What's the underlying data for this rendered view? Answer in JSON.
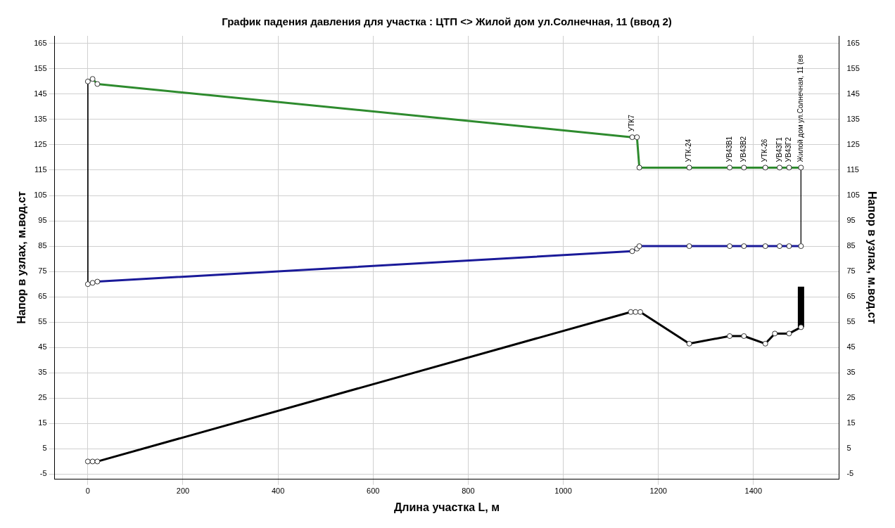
{
  "chart_data": {
    "type": "line",
    "title": "График падения давления для участка : ЦТП <> Жилой дом ул.Солнечная, 11 (ввод 2)",
    "xlabel": "Длина участка L, м",
    "ylabel": "Напор в узлах, м.вод.ст",
    "y2label": "Напор в узлах, м.вод.ст",
    "xlim": [
      -70,
      1580
    ],
    "xticks": [
      0,
      200,
      400,
      600,
      800,
      1000,
      1200,
      1400
    ],
    "ylim": [
      -7,
      168
    ],
    "yticks": [
      -5,
      5,
      15,
      25,
      35,
      45,
      55,
      65,
      75,
      85,
      95,
      105,
      115,
      125,
      135,
      145,
      155,
      165
    ],
    "y2lim": [
      -7,
      168
    ],
    "y2ticks": [
      -5,
      5,
      15,
      25,
      35,
      45,
      55,
      65,
      75,
      85,
      95,
      105,
      115,
      125,
      135,
      145,
      155,
      165
    ],
    "grid": true,
    "legend": false,
    "marker": "circle",
    "line_style": "solid",
    "series": [
      {
        "color": "#2e8b2e",
        "x": [
          0,
          10,
          20,
          1145,
          1155,
          1160,
          1265,
          1350,
          1380,
          1425,
          1455,
          1475,
          1500
        ],
        "values": [
          150,
          151,
          149,
          128,
          128,
          116,
          116,
          116,
          116,
          116,
          116,
          116,
          116
        ]
      },
      {
        "color": "#1a1a99",
        "x": [
          0,
          10,
          20,
          1145,
          1155,
          1160,
          1265,
          1350,
          1380,
          1425,
          1455,
          1475,
          1500
        ],
        "values": [
          70,
          70.5,
          71,
          83,
          84,
          85,
          85,
          85,
          85,
          85,
          85,
          85,
          85
        ]
      },
      {
        "color": "#000000",
        "x": [
          0,
          10,
          20,
          1142,
          1152,
          1162,
          1265,
          1350,
          1380,
          1425,
          1445,
          1475,
          1500
        ],
        "values": [
          0,
          0,
          0,
          59,
          59,
          59,
          46.5,
          49.5,
          49.5,
          46.5,
          50.5,
          50.5,
          53
        ]
      },
      {
        "color": "#000000",
        "marker": "none",
        "x": [
          0,
          0
        ],
        "values": [
          150,
          70
        ]
      },
      {
        "color": "#000000",
        "marker": "none",
        "x": [
          1500,
          1500
        ],
        "values": [
          116,
          85
        ]
      },
      {
        "color": "#000000",
        "marker": "none",
        "x": [
          1500,
          1500
        ],
        "values": [
          53,
          69
        ]
      }
    ],
    "annotations": [
      {
        "text": "УТК7",
        "x": 1145,
        "y": 128
      },
      {
        "text": "УТК-24",
        "x": 1265,
        "y": 116
      },
      {
        "text": "УВ43В1",
        "x": 1350,
        "y": 116
      },
      {
        "text": "УВ43В2",
        "x": 1380,
        "y": 116
      },
      {
        "text": "УТК-26",
        "x": 1425,
        "y": 116
      },
      {
        "text": "УВ43Г1",
        "x": 1455,
        "y": 116
      },
      {
        "text": "УВ43Г2",
        "x": 1475,
        "y": 116
      },
      {
        "text": "Жилой дом ул.Солнечная, 11 (вв",
        "x": 1500,
        "y": 116
      }
    ]
  }
}
